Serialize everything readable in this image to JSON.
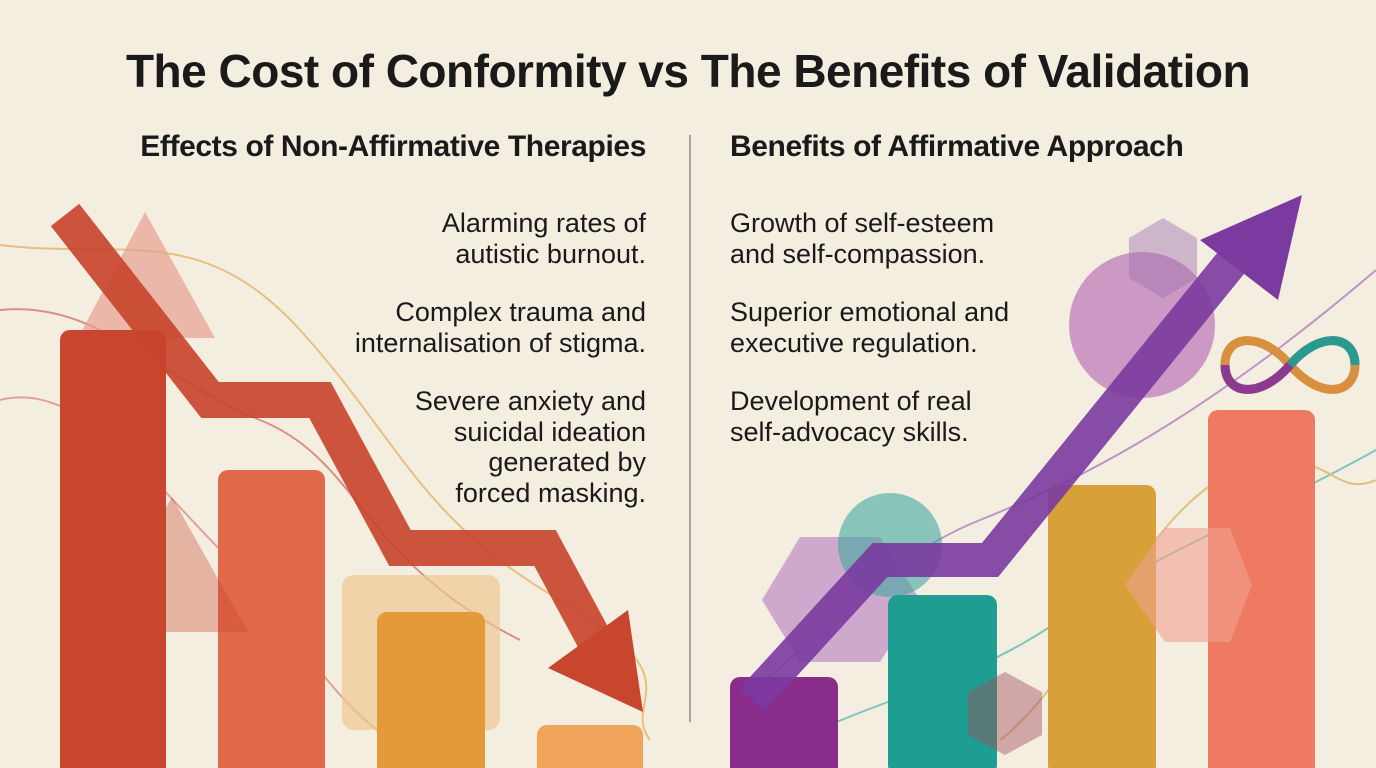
{
  "title": "The Cost of Conformity vs The Benefits of Validation",
  "left": {
    "heading": "Effects of Non-Affirmative Therapies",
    "items": [
      [
        "Alarming rates of",
        "autistic burnout."
      ],
      [
        "Complex trauma and",
        "internalisation of stigma."
      ],
      [
        "Severe anxiety and",
        "suicidal ideation",
        "generated by",
        "forced masking."
      ]
    ]
  },
  "right": {
    "heading": "Benefits of Affirmative Approach",
    "items": [
      [
        "Growth of self-esteem",
        "and self-compassion."
      ],
      [
        "Superior emotional and",
        "executive regulation."
      ],
      [
        "Development of real",
        "self-advocacy skills."
      ]
    ]
  }
}
